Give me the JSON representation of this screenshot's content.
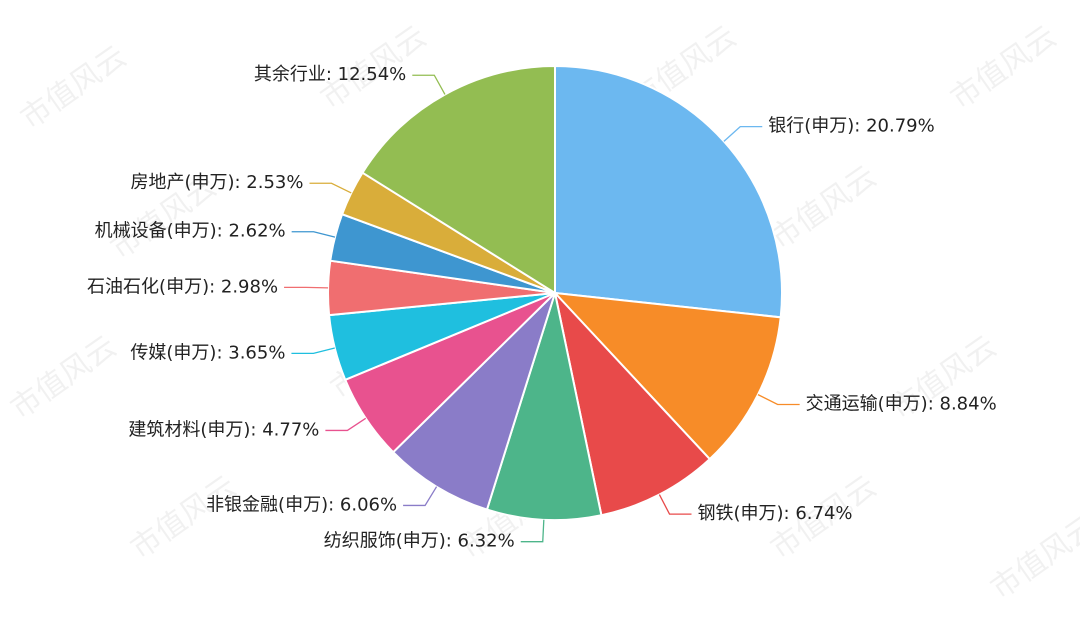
{
  "chart_data": {
    "type": "pie",
    "watermark": "市值风云",
    "categories": [
      "银行(申万)",
      "交通运输(申万)",
      "钢铁(申万)",
      "纺织服饰(申万)",
      "非银金融(申万)",
      "建筑材料(申万)",
      "传媒(申万)",
      "石油石化(申万)",
      "机械设备(申万)",
      "房地产(申万)",
      "其余行业"
    ],
    "values": [
      20.79,
      8.84,
      6.74,
      6.32,
      6.06,
      4.77,
      3.65,
      2.98,
      2.62,
      2.53,
      12.54
    ],
    "value_labels": [
      ": 20.79%",
      ": 8.84%",
      ": 6.74%",
      ": 6.32%",
      ": 6.06%",
      ": 4.77%",
      ": 3.65%",
      ": 2.98%",
      ": 2.62%",
      ": 2.53%",
      ": 12.54%"
    ],
    "colors": [
      "#6cb8f0",
      "#f78c28",
      "#e84a4a",
      "#4db58a",
      "#8a7cc8",
      "#e8528f",
      "#1fbfdf",
      "#f06e70",
      "#3e96d0",
      "#d9ad3a",
      "#93bd52"
    ]
  }
}
